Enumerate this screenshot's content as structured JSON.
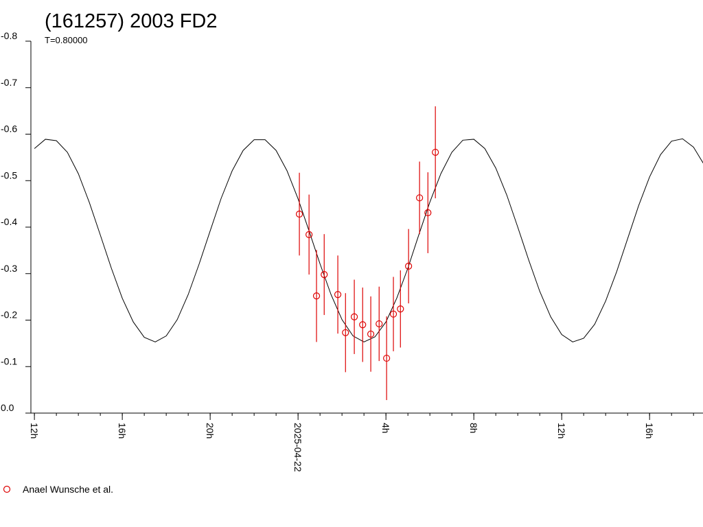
{
  "chart_data": {
    "type": "scatter",
    "title": "(161257) 2003 FD2",
    "subtitle": "T=0.80000",
    "xlim": [
      -12.16,
      18.4
    ],
    "ylim": [
      0,
      -0.8
    ],
    "xticks": [
      {
        "value": -12,
        "label": "12h"
      },
      {
        "value": -8,
        "label": "16h"
      },
      {
        "value": -4,
        "label": "20h"
      },
      {
        "value": 0,
        "label": "2025-04-22"
      },
      {
        "value": 4,
        "label": "4h"
      },
      {
        "value": 8,
        "label": "8h"
      },
      {
        "value": 12,
        "label": "12h"
      },
      {
        "value": 16,
        "label": "16h"
      }
    ],
    "xminorticks": [
      -12,
      -11,
      -10,
      -9,
      -8,
      -7,
      -6,
      -5,
      -4,
      -3,
      -2,
      -1,
      0,
      1,
      2,
      3,
      4,
      5,
      6,
      7,
      8,
      9,
      10,
      11,
      12,
      13,
      14,
      15,
      16,
      17,
      18
    ],
    "yticks": [
      {
        "value": 0,
        "label": "0.0"
      },
      -0.1,
      -0.2,
      -0.3,
      -0.4,
      -0.5,
      -0.6,
      -0.7,
      -0.8
    ],
    "curve": {
      "color": "#000000",
      "x": [
        -12,
        -11.5,
        -11,
        -10.5,
        -10,
        -9.5,
        -9,
        -8.5,
        -8,
        -7.5,
        -7,
        -6.5,
        -6,
        -5.5,
        -5,
        -4.5,
        -4,
        -3.5,
        -3,
        -2.5,
        -2,
        -1.5,
        -1,
        -0.5,
        0,
        0.5,
        1,
        1.5,
        2,
        2.5,
        3,
        3.5,
        4,
        4.5,
        5,
        5.5,
        6,
        6.5,
        7,
        7.5,
        8,
        8.5,
        9,
        9.5,
        10,
        10.5,
        11,
        11.5,
        12,
        12.5,
        13,
        13.5,
        14,
        14.5,
        15,
        15.5,
        16,
        16.5,
        17,
        17.5,
        18,
        18.5
      ],
      "values": [
        -0.569,
        -0.589,
        -0.586,
        -0.561,
        -0.515,
        -0.453,
        -0.383,
        -0.312,
        -0.247,
        -0.196,
        -0.163,
        -0.153,
        -0.166,
        -0.201,
        -0.255,
        -0.321,
        -0.392,
        -0.462,
        -0.521,
        -0.565,
        -0.588,
        -0.588,
        -0.565,
        -0.521,
        -0.461,
        -0.392,
        -0.321,
        -0.255,
        -0.201,
        -0.166,
        -0.153,
        -0.164,
        -0.196,
        -0.248,
        -0.312,
        -0.384,
        -0.454,
        -0.515,
        -0.561,
        -0.587,
        -0.589,
        -0.569,
        -0.527,
        -0.469,
        -0.4,
        -0.329,
        -0.262,
        -0.207,
        -0.169,
        -0.153,
        -0.161,
        -0.191,
        -0.241,
        -0.304,
        -0.375,
        -0.446,
        -0.508,
        -0.556,
        -0.585,
        -0.59,
        -0.572,
        -0.533
      ]
    },
    "series": [
      {
        "name": "Anael Wunsche et al.",
        "color": "#dd0000",
        "x": [
          0.06,
          0.5,
          0.84,
          1.19,
          1.81,
          2.16,
          2.56,
          2.94,
          3.31,
          3.69,
          4.03,
          4.34,
          4.66,
          5.03,
          5.53,
          5.91,
          6.25
        ],
        "values": [
          -0.428,
          -0.384,
          -0.252,
          -0.298,
          -0.255,
          -0.173,
          -0.207,
          -0.19,
          -0.17,
          -0.192,
          -0.118,
          -0.213,
          -0.224,
          -0.316,
          -0.463,
          -0.431,
          -0.561
        ],
        "errors": [
          0.089,
          0.086,
          0.099,
          0.087,
          0.084,
          0.085,
          0.08,
          0.08,
          0.081,
          0.08,
          0.09,
          0.08,
          0.083,
          0.08,
          0.078,
          0.087,
          0.099
        ]
      }
    ]
  }
}
